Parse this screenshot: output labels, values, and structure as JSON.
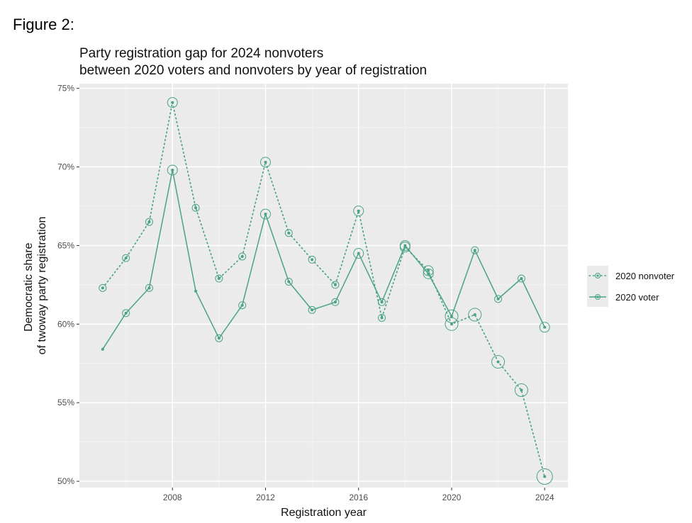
{
  "figure_label": "Figure 2:",
  "colors": {
    "series": "#4aa383",
    "panel": "#ebebeb",
    "grid_major": "#ffffff",
    "grid_minor": "#f5f5f5"
  },
  "chart_data": {
    "type": "line",
    "title": "Party registration gap for 2024 nonvoters",
    "subtitle": "between 2020 voters and nonvoters by year of registration",
    "xlabel": "Registration year",
    "ylabel": [
      "Democratic share",
      "of twoway party registration"
    ],
    "xlim": [
      2004.0,
      2025.0
    ],
    "ylim": [
      49.6,
      75.3
    ],
    "x_ticks": [
      2008,
      2012,
      2016,
      2020,
      2024
    ],
    "y_ticks": [
      50,
      55,
      60,
      65,
      70,
      75
    ],
    "y_tick_labels": [
      "50%",
      "55%",
      "60%",
      "65%",
      "70%",
      "75%"
    ],
    "grid": true,
    "legend_position": "right",
    "x": [
      2005,
      2006,
      2007,
      2008,
      2009,
      2010,
      2011,
      2012,
      2013,
      2014,
      2015,
      2016,
      2017,
      2018,
      2019,
      2020,
      2021,
      2022,
      2023,
      2024
    ],
    "series": [
      {
        "name": "2020 nonvoter",
        "line_style": "dotted",
        "values": [
          62.3,
          64.2,
          66.5,
          74.1,
          67.4,
          62.9,
          64.3,
          70.3,
          65.8,
          64.1,
          62.5,
          67.2,
          60.4,
          64.9,
          63.4,
          60.0,
          60.6,
          57.6,
          55.8,
          50.3
        ],
        "sizes": [
          1,
          1,
          1,
          2,
          1,
          1,
          1,
          2,
          1,
          1,
          1,
          2,
          1,
          2,
          2,
          3,
          3,
          3,
          3,
          4
        ]
      },
      {
        "name": "2020 voter",
        "line_style": "solid",
        "values": [
          58.4,
          60.7,
          62.3,
          69.8,
          62.1,
          59.1,
          61.2,
          67.0,
          62.7,
          60.9,
          61.4,
          64.5,
          61.4,
          65.0,
          63.2,
          60.5,
          64.7,
          61.6,
          62.9,
          59.8
        ],
        "sizes": [
          0,
          1,
          1,
          2,
          0,
          1,
          1,
          2,
          1,
          1,
          1,
          2,
          1,
          2,
          2,
          3,
          1,
          1,
          1,
          2
        ]
      }
    ]
  }
}
